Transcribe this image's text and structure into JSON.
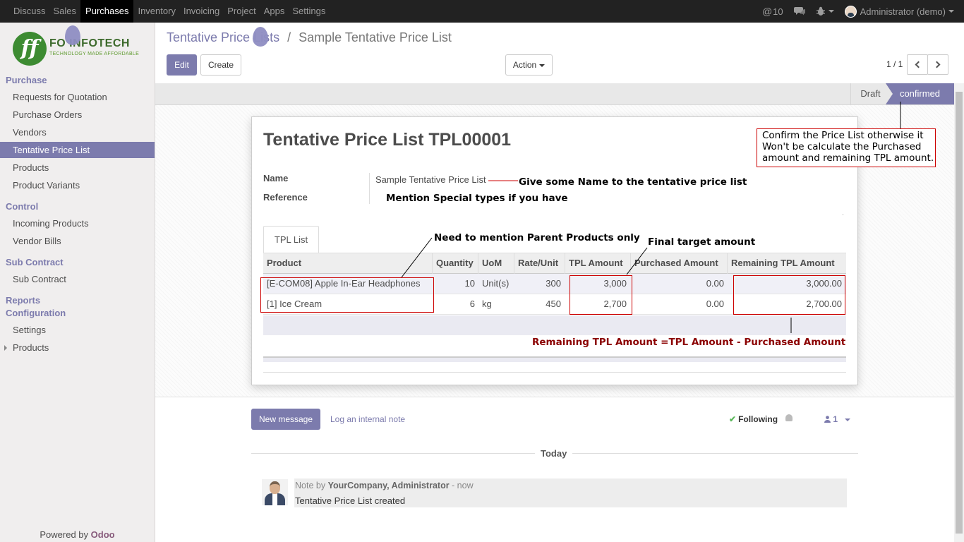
{
  "topbar": {
    "menu": [
      "Discuss",
      "Sales",
      "Purchases",
      "Inventory",
      "Invoicing",
      "Project",
      "Apps",
      "Settings"
    ],
    "active": "Purchases",
    "mentions_count": "10",
    "user": "Administrator (demo)"
  },
  "logo": {
    "mark": "ff",
    "name": "FO INFOTECH",
    "tagline": "TECHNOLOGY MADE AFFORDABLE"
  },
  "sidebar": {
    "sections": {
      "purchase": "Purchase",
      "control": "Control",
      "sub_contract": "Sub Contract",
      "reports": "Reports",
      "configuration": "Configuration"
    },
    "items": {
      "rfq": "Requests for Quotation",
      "purchase_orders": "Purchase Orders",
      "vendors": "Vendors",
      "tentative_price_list": "Tentative Price List",
      "products": "Products",
      "product_variants": "Product Variants",
      "incoming_products": "Incoming Products",
      "vendor_bills": "Vendor Bills",
      "sub_contract": "Sub Contract",
      "settings": "Settings",
      "config_products": "Products"
    },
    "powered_by": "Powered by ",
    "powered_brand": "Odoo"
  },
  "breadcrumb": {
    "parent": "Tentative Price Lists",
    "separator": "/",
    "current": "Sample Tentative Price List"
  },
  "buttons": {
    "edit": "Edit",
    "create": "Create",
    "action": "Action"
  },
  "pager": "1 / 1",
  "status": {
    "draft": "Draft",
    "confirmed": "confirmed"
  },
  "form": {
    "title": "Tentative Price List TPL00001",
    "name_label": "Name",
    "name_value": "Sample Tentative Price List",
    "reference_label": "Reference",
    "tab": "TPL List"
  },
  "table": {
    "headers": [
      "Product",
      "Quantity",
      "UoM",
      "Rate/Unit",
      "TPL Amount",
      "Purchased Amount",
      "Remaining TPL Amount"
    ],
    "rows": [
      {
        "product": "[E-COM08] Apple In-Ear Headphones",
        "quantity": "10",
        "uom": "Unit(s)",
        "rate": "300",
        "tpl_amount": "3,000",
        "purchased": "0.00",
        "remaining": "3,000.00"
      },
      {
        "product": "[1] Ice Cream",
        "quantity": "6",
        "uom": "kg",
        "rate": "450",
        "tpl_amount": "2,700",
        "purchased": "0.00",
        "remaining": "2,700.00"
      }
    ]
  },
  "annotations": {
    "confirm": "Confirm the Price List otherwise it Won't be calculate the Purchased amount and remaining TPL amount.",
    "name": "Give some Name to the tentative price list",
    "reference": "Mention Special types if you have",
    "parent_products": "Need to mention Parent Products only",
    "final_target": "Final target amount",
    "formula": "Remaining TPL Amount =TPL Amount - Purchased Amount"
  },
  "chatter": {
    "new_message": "New message",
    "log_note": "Log an internal note",
    "following": "Following",
    "followers": "1",
    "today": "Today",
    "msg_prefix": "Note by ",
    "msg_author": "YourCompany, Administrator",
    "msg_time": " - now",
    "msg_body": "Tentative Price List created"
  },
  "colors": {
    "brand": "#7c7bad",
    "annotation_border": "#cc0000",
    "formula_text": "#8b0000"
  }
}
